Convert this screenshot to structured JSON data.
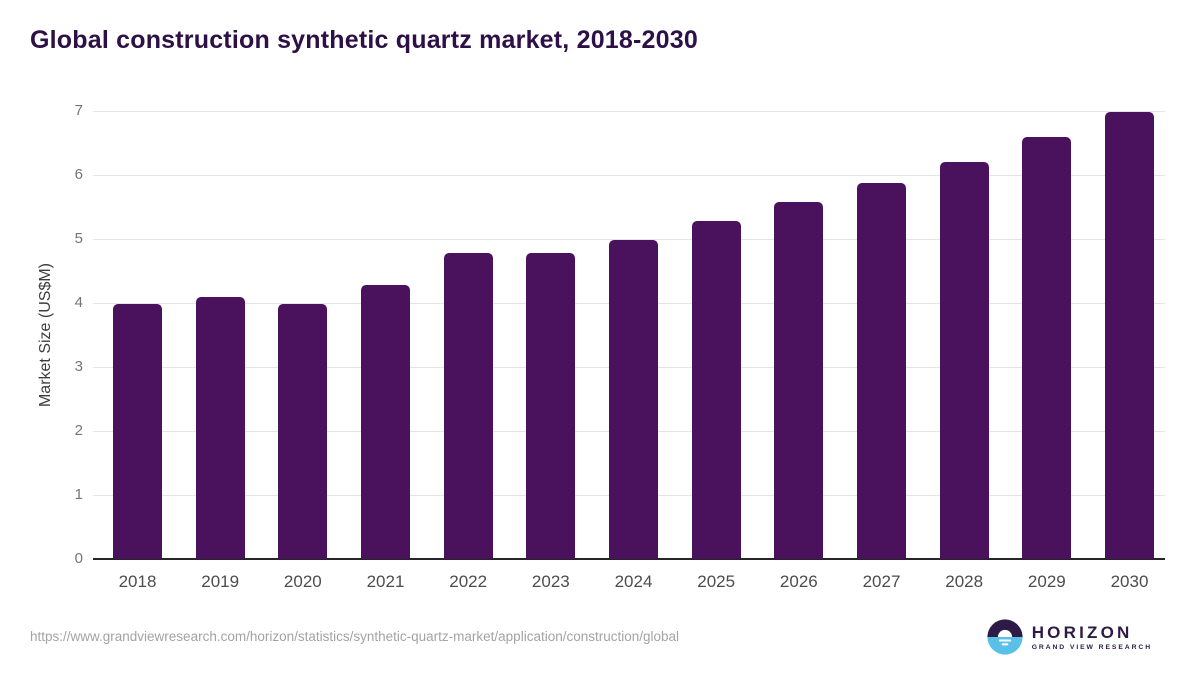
{
  "header": {
    "title": "Global construction synthetic quartz market, 2018-2030"
  },
  "chart_data": {
    "type": "bar",
    "title": "Global construction synthetic quartz market, 2018-2030",
    "categories": [
      "2018",
      "2019",
      "2020",
      "2021",
      "2022",
      "2023",
      "2024",
      "2025",
      "2026",
      "2027",
      "2028",
      "2029",
      "2030"
    ],
    "values": [
      3.98,
      4.1,
      3.98,
      4.28,
      4.78,
      4.78,
      4.98,
      5.28,
      5.58,
      5.88,
      6.2,
      6.6,
      6.99
    ],
    "xlabel": "",
    "ylabel": "Market Size (US$M)",
    "ylim": [
      0,
      7
    ],
    "yticks": [
      0,
      1,
      2,
      3,
      4,
      5,
      6,
      7
    ],
    "grid": true,
    "legend": false,
    "bar_color": "#4a115c"
  },
  "footer": {
    "source_url": "https://www.grandviewresearch.com/horizon/statistics/synthetic-quartz-market/application/construction/global",
    "logo": {
      "brand": "HORIZON",
      "subbrand": "GRAND VIEW RESEARCH",
      "dark_color": "#2e1a47",
      "blue_color": "#59c1e8"
    }
  }
}
